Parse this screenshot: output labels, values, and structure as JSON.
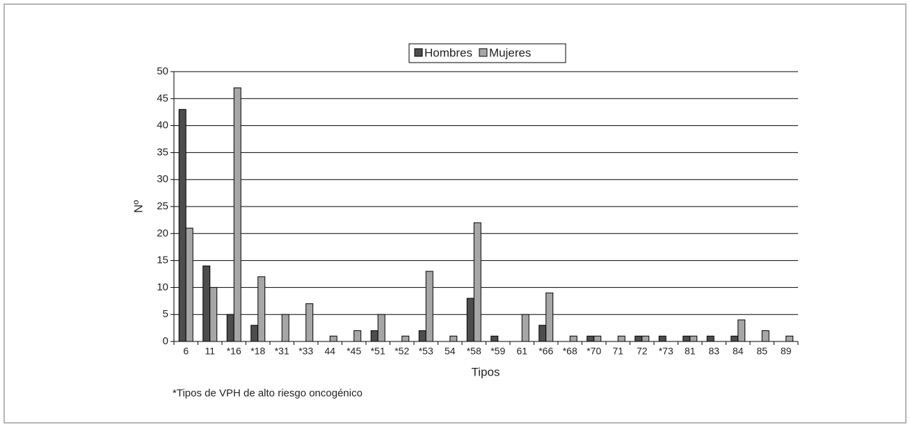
{
  "chart_data": {
    "type": "bar",
    "categories": [
      "6",
      "11",
      "*16",
      "*18",
      "*31",
      "*33",
      "44",
      "*45",
      "*51",
      "*52",
      "*53",
      "54",
      "*58",
      "*59",
      "61",
      "*66",
      "*68",
      "*70",
      "71",
      "72",
      "*73",
      "81",
      "83",
      "84",
      "85",
      "89"
    ],
    "series": [
      {
        "name": "Hombres",
        "color": "#4d4d4d",
        "values": [
          43,
          14,
          5,
          3,
          0,
          0,
          0,
          0,
          2,
          0,
          2,
          0,
          8,
          1,
          0,
          3,
          0,
          1,
          0,
          1,
          1,
          1,
          1,
          1,
          0,
          0
        ]
      },
      {
        "name": "Mujeres",
        "color": "#a6a6a6",
        "values": [
          21,
          10,
          47,
          12,
          5,
          7,
          1,
          2,
          5,
          1,
          13,
          1,
          22,
          0,
          5,
          9,
          1,
          1,
          1,
          1,
          0,
          1,
          0,
          4,
          2,
          1
        ]
      }
    ],
    "x_label": "Tipos",
    "y_label": "Nº",
    "ylim": [
      0,
      50
    ],
    "yticks": [
      0,
      5,
      10,
      15,
      20,
      25,
      30,
      35,
      40,
      45,
      50
    ],
    "grid": true,
    "legend": "top",
    "annotation": "*Tipos de VPH de alto riesgo oncogénico"
  }
}
